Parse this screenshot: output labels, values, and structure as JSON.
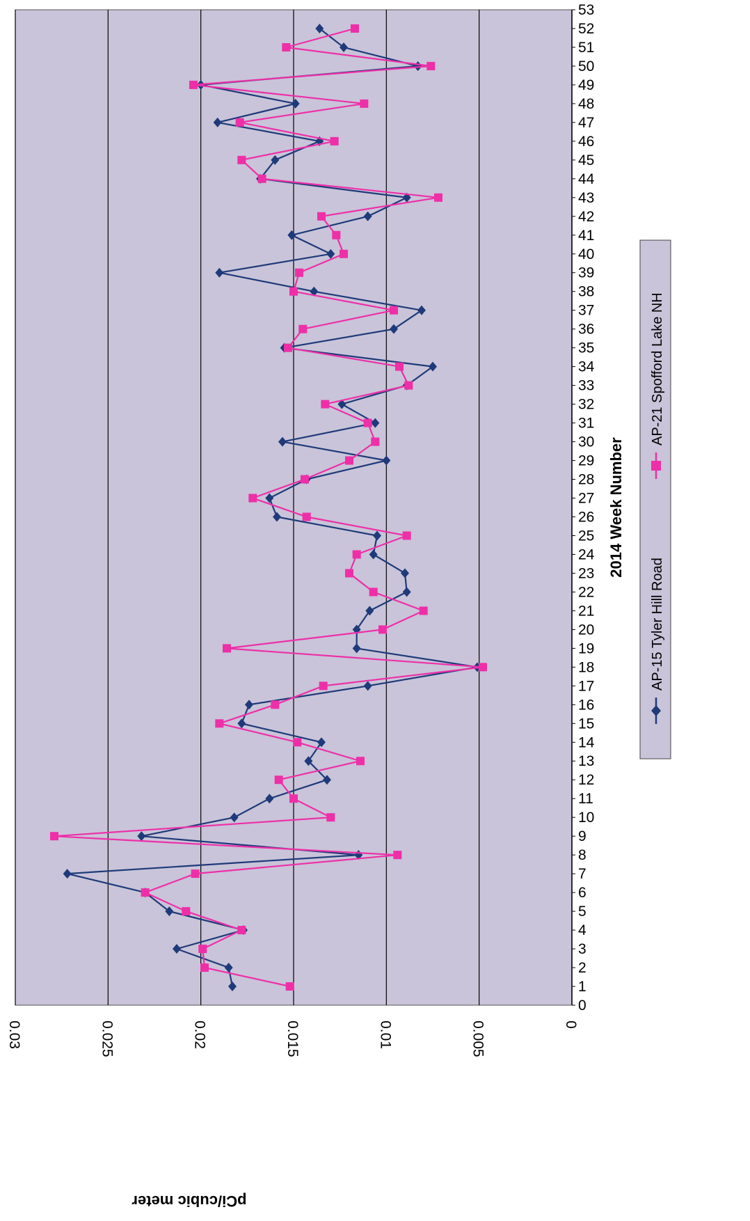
{
  "chart_data": {
    "type": "line",
    "orientation": "rotated-90",
    "title": "",
    "xlabel": "2014 Week Number",
    "ylabel": "pCi/cubic meter",
    "xlim": [
      0,
      53
    ],
    "ylim": [
      0,
      0.03
    ],
    "x_ticks": [
      0,
      1,
      2,
      3,
      4,
      5,
      6,
      7,
      8,
      9,
      10,
      11,
      12,
      13,
      14,
      15,
      16,
      17,
      18,
      19,
      20,
      21,
      22,
      23,
      24,
      25,
      26,
      27,
      28,
      29,
      30,
      31,
      32,
      33,
      34,
      35,
      36,
      37,
      38,
      39,
      40,
      41,
      42,
      43,
      44,
      45,
      46,
      47,
      48,
      49,
      50,
      51,
      52,
      53
    ],
    "y_ticks": [
      "0",
      "0.005",
      "0.01",
      "0.015",
      "0.02",
      "0.025",
      "0.03"
    ],
    "grid": "major y gridlines",
    "legend_placement": "right",
    "colors": {
      "plot_bg": "#c9c4d9",
      "grid": "#000000"
    },
    "series": [
      {
        "name": "AP-15 Tyler Hill Road",
        "color": "#1f3a7a",
        "marker": "diamond",
        "x": [
          1,
          2,
          3,
          4,
          5,
          6,
          7,
          8,
          9,
          10,
          11,
          12,
          13,
          14,
          15,
          16,
          17,
          18,
          19,
          20,
          21,
          22,
          23,
          24,
          25,
          26,
          27,
          28,
          29,
          30,
          31,
          32,
          33,
          34,
          35,
          36,
          37,
          38,
          39,
          40,
          41,
          42,
          43,
          44,
          45,
          46,
          47,
          48,
          49,
          50,
          51,
          52
        ],
        "values": [
          0.0183,
          0.0185,
          0.0213,
          0.0177,
          0.0217,
          0.023,
          0.0272,
          0.0115,
          0.0232,
          0.0182,
          0.0163,
          0.0132,
          0.0142,
          0.0135,
          0.0178,
          0.0174,
          0.011,
          0.0051,
          0.0116,
          0.0116,
          0.0109,
          0.0089,
          0.009,
          0.0107,
          0.0105,
          0.0159,
          0.0163,
          0.0143,
          0.01,
          0.0156,
          0.0106,
          0.0124,
          0.0089,
          0.0075,
          0.0155,
          0.0096,
          0.0081,
          0.0139,
          0.019,
          0.013,
          0.0151,
          0.011,
          0.0089,
          0.0168,
          0.016,
          0.0136,
          0.0191,
          0.0149,
          0.02,
          0.0083,
          0.0123,
          0.0136
        ]
      },
      {
        "name": "AP-21 Spofford Lake NH",
        "color": "#ee2fa8",
        "marker": "square",
        "x": [
          1,
          2,
          3,
          4,
          5,
          6,
          7,
          8,
          9,
          10,
          11,
          12,
          13,
          14,
          15,
          16,
          17,
          18,
          19,
          20,
          21,
          22,
          23,
          24,
          25,
          26,
          27,
          28,
          29,
          30,
          31,
          32,
          33,
          34,
          35,
          36,
          37,
          38,
          39,
          40,
          41,
          42,
          43,
          44,
          45,
          46,
          47,
          48,
          49,
          50,
          51,
          52
        ],
        "values": [
          0.0152,
          0.0198,
          0.0199,
          0.0178,
          0.0208,
          0.023,
          0.0203,
          0.0094,
          0.0279,
          0.013,
          0.015,
          0.0158,
          0.0114,
          0.0148,
          0.019,
          0.016,
          0.0134,
          0.0048,
          0.0186,
          0.0102,
          0.008,
          0.0107,
          0.012,
          0.0116,
          0.0089,
          0.0143,
          0.0172,
          0.0144,
          0.012,
          0.0106,
          0.011,
          0.0133,
          0.0088,
          0.0093,
          0.0153,
          0.0145,
          0.0096,
          0.015,
          0.0147,
          0.0123,
          0.0127,
          0.0135,
          0.0072,
          0.0167,
          0.0178,
          0.0128,
          0.0179,
          0.0112,
          0.0204,
          0.0076,
          0.0154,
          0.0117
        ]
      }
    ]
  }
}
